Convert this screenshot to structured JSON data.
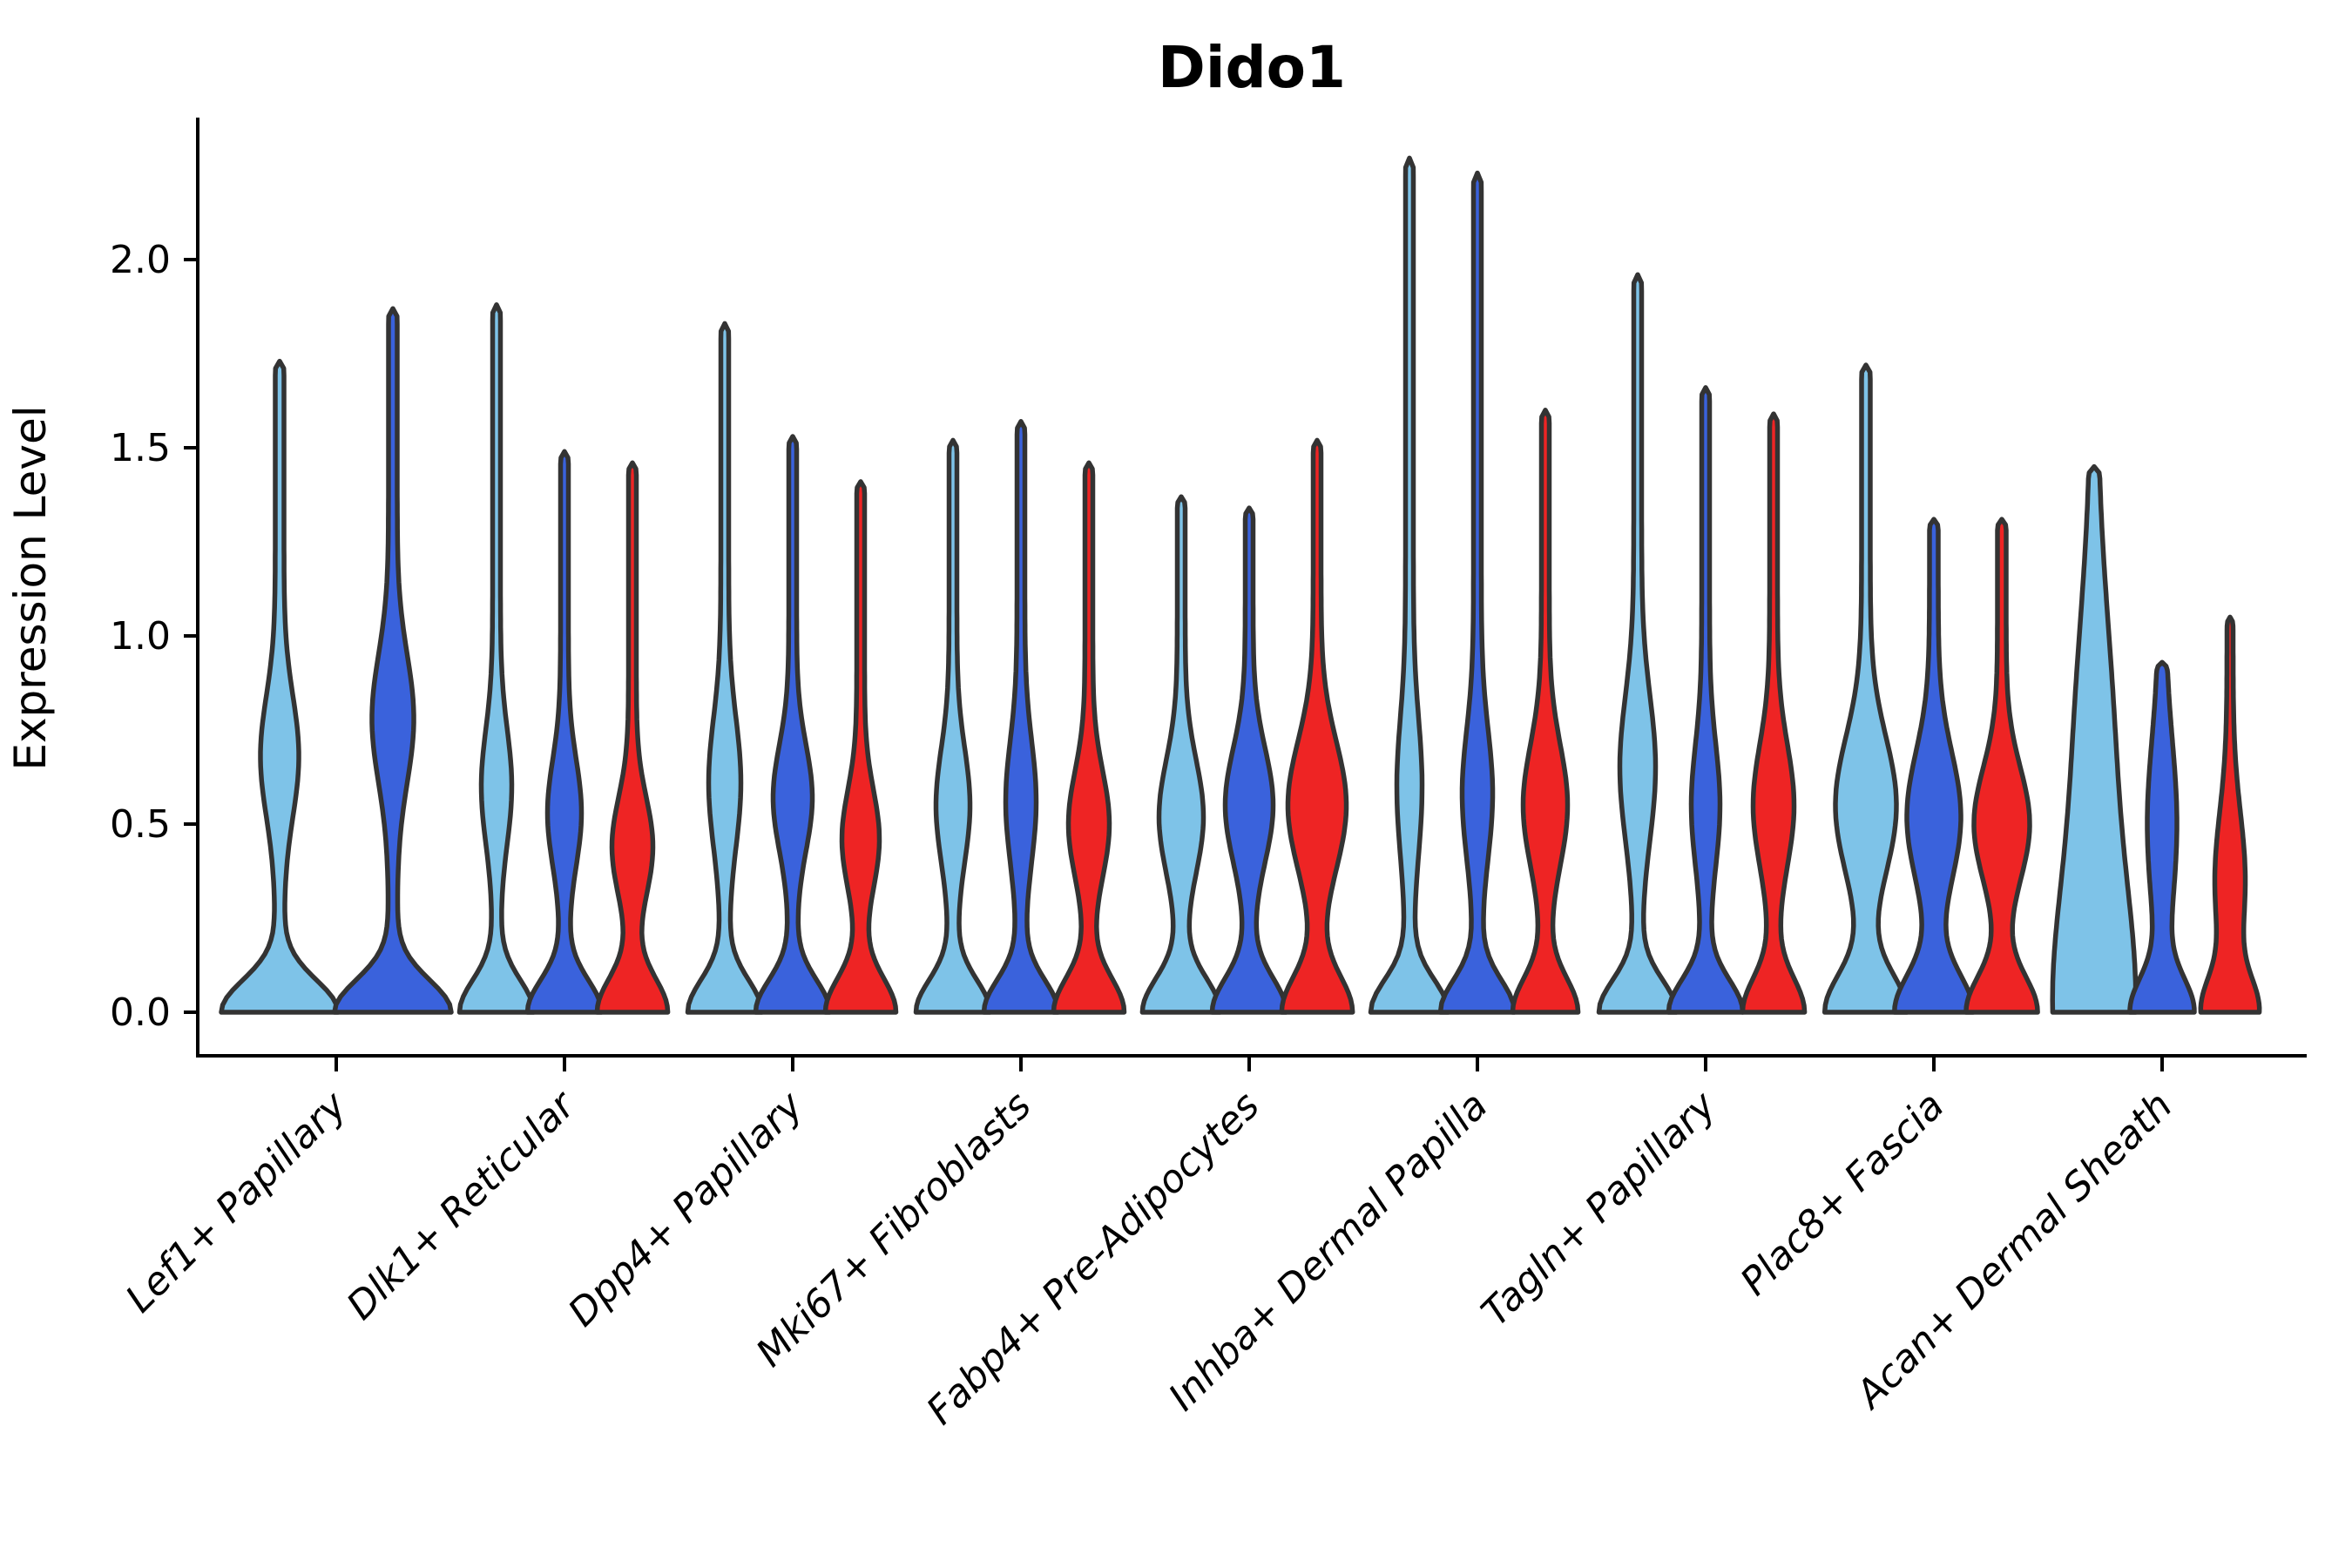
{
  "chart_data": {
    "type": "violin",
    "title": "Dido1",
    "ylabel": "Expression Level",
    "xlabel": "",
    "grid": false,
    "legend": null,
    "ytick_labels": [
      "0.0",
      "0.5",
      "1.0",
      "1.5",
      "2.0"
    ],
    "ytick_values": [
      0.0,
      0.5,
      1.0,
      1.5,
      2.0
    ],
    "ylim": [
      -0.12,
      2.36
    ],
    "palette": {
      "lightblue": "#7EC3E8",
      "blue": "#3A62DC",
      "red": "#EE2424",
      "outline": "#333333"
    },
    "categories": [
      "Lef1+ Papillary",
      "Dlk1+ Reticular",
      "Dpp4+ Papillary",
      "Mki67+ Fibroblasts",
      "Fabp4+ Pre-Adipocytes",
      "Inhba+ Dermal Papilla",
      "Tagln+ Papillary",
      "Plac8+ Fascia",
      "Acan+ Dermal Sheath"
    ],
    "series": [
      {
        "category": "Lef1+ Papillary",
        "violins": [
          {
            "color": "lightblue",
            "max": 1.73,
            "base_hw": 62,
            "base_sigma": 0.085,
            "mid_v": 0.68,
            "mid_hw": 17,
            "mid_sigma": 0.16,
            "stem_hw": 5
          },
          {
            "color": "blue",
            "max": 1.87,
            "base_hw": 62,
            "base_sigma": 0.085,
            "mid_v": 0.78,
            "mid_hw": 19,
            "mid_sigma": 0.17,
            "stem_hw": 5
          }
        ]
      },
      {
        "category": "Dlk1+ Reticular",
        "violins": [
          {
            "color": "lightblue",
            "max": 1.88,
            "base_hw": 38,
            "base_sigma": 0.085,
            "mid_v": 0.6,
            "mid_hw": 13,
            "mid_sigma": 0.15,
            "stem_hw": 4.5
          },
          {
            "color": "blue",
            "max": 1.49,
            "base_hw": 38,
            "base_sigma": 0.085,
            "mid_v": 0.53,
            "mid_hw": 15,
            "mid_sigma": 0.14,
            "stem_hw": 4.5
          },
          {
            "color": "red",
            "max": 1.46,
            "base_hw": 36,
            "base_sigma": 0.09,
            "mid_v": 0.44,
            "mid_hw": 19,
            "mid_sigma": 0.13,
            "stem_hw": 4.5
          }
        ]
      },
      {
        "category": "Dpp4+ Papillary",
        "violins": [
          {
            "color": "lightblue",
            "max": 1.83,
            "base_hw": 38,
            "base_sigma": 0.085,
            "mid_v": 0.61,
            "mid_hw": 14,
            "mid_sigma": 0.17,
            "stem_hw": 4.5
          },
          {
            "color": "blue",
            "max": 1.53,
            "base_hw": 38,
            "base_sigma": 0.085,
            "mid_v": 0.57,
            "mid_hw": 18,
            "mid_sigma": 0.14,
            "stem_hw": 4.5
          },
          {
            "color": "red",
            "max": 1.41,
            "base_hw": 36,
            "base_sigma": 0.09,
            "mid_v": 0.46,
            "mid_hw": 17,
            "mid_sigma": 0.13,
            "stem_hw": 4.5
          }
        ]
      },
      {
        "category": "Mki67+ Fibroblasts",
        "violins": [
          {
            "color": "lightblue",
            "max": 1.52,
            "base_hw": 38,
            "base_sigma": 0.085,
            "mid_v": 0.55,
            "mid_hw": 15,
            "mid_sigma": 0.15,
            "stem_hw": 4.5
          },
          {
            "color": "blue",
            "max": 1.57,
            "base_hw": 38,
            "base_sigma": 0.085,
            "mid_v": 0.56,
            "mid_hw": 13,
            "mid_sigma": 0.16,
            "stem_hw": 4.5
          },
          {
            "color": "red",
            "max": 1.46,
            "base_hw": 36,
            "base_sigma": 0.09,
            "mid_v": 0.5,
            "mid_hw": 19,
            "mid_sigma": 0.14,
            "stem_hw": 4.5
          }
        ]
      },
      {
        "category": "Fabp4+ Pre-Adipocytes",
        "violins": [
          {
            "color": "lightblue",
            "max": 1.37,
            "base_hw": 40,
            "base_sigma": 0.09,
            "mid_v": 0.52,
            "mid_hw": 21,
            "mid_sigma": 0.15,
            "stem_hw": 4.5
          },
          {
            "color": "blue",
            "max": 1.34,
            "base_hw": 38,
            "base_sigma": 0.09,
            "mid_v": 0.55,
            "mid_hw": 23,
            "mid_sigma": 0.15,
            "stem_hw": 4.5
          },
          {
            "color": "red",
            "max": 1.52,
            "base_hw": 36,
            "base_sigma": 0.095,
            "mid_v": 0.55,
            "mid_hw": 29,
            "mid_sigma": 0.17,
            "stem_hw": 4.5
          }
        ]
      },
      {
        "category": "Inhba+ Dermal Papilla",
        "violins": [
          {
            "color": "lightblue",
            "max": 2.27,
            "base_hw": 40,
            "base_sigma": 0.085,
            "mid_v": 0.6,
            "mid_hw": 10,
            "mid_sigma": 0.18,
            "stem_hw": 4.5
          },
          {
            "color": "blue",
            "max": 2.23,
            "base_hw": 38,
            "base_sigma": 0.085,
            "mid_v": 0.58,
            "mid_hw": 13,
            "mid_sigma": 0.17,
            "stem_hw": 4.5
          },
          {
            "color": "red",
            "max": 1.6,
            "base_hw": 33,
            "base_sigma": 0.09,
            "mid_v": 0.55,
            "mid_hw": 21,
            "mid_sigma": 0.16,
            "stem_hw": 4.5
          }
        ]
      },
      {
        "category": "Tagln+ Papillary",
        "violins": [
          {
            "color": "lightblue",
            "max": 1.96,
            "base_hw": 40,
            "base_sigma": 0.085,
            "mid_v": 0.65,
            "mid_hw": 16,
            "mid_sigma": 0.19,
            "stem_hw": 4.5
          },
          {
            "color": "blue",
            "max": 1.66,
            "base_hw": 38,
            "base_sigma": 0.085,
            "mid_v": 0.55,
            "mid_hw": 12,
            "mid_sigma": 0.16,
            "stem_hw": 4.5
          },
          {
            "color": "red",
            "max": 1.59,
            "base_hw": 31,
            "base_sigma": 0.09,
            "mid_v": 0.55,
            "mid_hw": 19,
            "mid_sigma": 0.16,
            "stem_hw": 4.5
          }
        ]
      },
      {
        "category": "Plac8+ Fascia",
        "violins": [
          {
            "color": "lightblue",
            "max": 1.72,
            "base_hw": 42,
            "base_sigma": 0.1,
            "mid_v": 0.55,
            "mid_hw": 30,
            "mid_sigma": 0.18,
            "stem_hw": 5
          },
          {
            "color": "blue",
            "max": 1.31,
            "base_hw": 40,
            "base_sigma": 0.1,
            "mid_v": 0.52,
            "mid_hw": 26,
            "mid_sigma": 0.17,
            "stem_hw": 5
          },
          {
            "color": "red",
            "max": 1.31,
            "base_hw": 36,
            "base_sigma": 0.095,
            "mid_v": 0.5,
            "mid_hw": 27,
            "mid_sigma": 0.15,
            "stem_hw": 5
          }
        ]
      },
      {
        "category": "Acan+ Dermal Sheath",
        "violins": [
          {
            "color": "lightblue",
            "max": 1.45,
            "base_hw": 42,
            "base_sigma": 0.35,
            "mid_v": 0.75,
            "mid_hw": 16,
            "mid_sigma": 0.35,
            "stem_hw": 4
          },
          {
            "color": "blue",
            "max": 0.93,
            "base_hw": 32,
            "base_sigma": 0.09,
            "mid_v": 0.5,
            "mid_hw": 13,
            "mid_sigma": 0.22,
            "stem_hw": 4
          },
          {
            "color": "red",
            "max": 1.05,
            "base_hw": 28,
            "base_sigma": 0.09,
            "mid_v": 0.35,
            "mid_hw": 14,
            "mid_sigma": 0.18,
            "stem_hw": 3.5
          }
        ]
      }
    ]
  }
}
